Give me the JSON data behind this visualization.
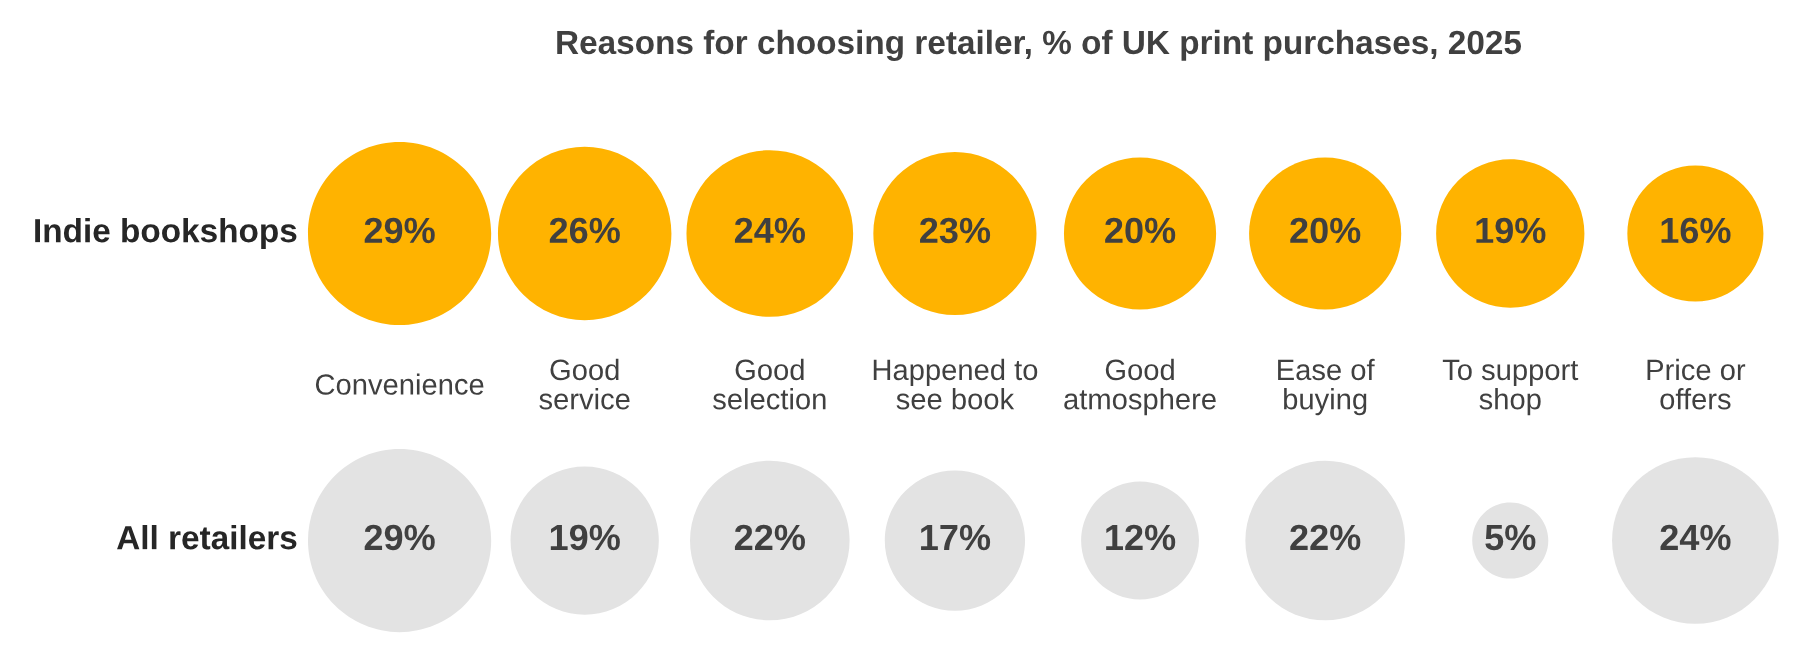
{
  "chart_data": {
    "type": "other",
    "title": "Reasons for choosing retailer, % of UK print purchases, 2025",
    "categories": [
      "Convenience",
      "Good\nservice",
      "Good\nselection",
      "Happened to\nsee book",
      "Good\natmosphere",
      "Ease of\nbuying",
      "To support\nshop",
      "Price or\noffers"
    ],
    "series": [
      {
        "name": "Indie bookshops",
        "color": "#ffb300",
        "values": [
          29,
          26,
          24,
          23,
          20,
          20,
          19,
          16
        ],
        "value_labels": [
          "29%",
          "26%",
          "24%",
          "23%",
          "20%",
          "20%",
          "19%",
          "16%"
        ]
      },
      {
        "name": "All retailers",
        "color": "#e3e3e3",
        "values": [
          29,
          19,
          22,
          17,
          12,
          22,
          5,
          24
        ],
        "value_labels": [
          "29%",
          "19%",
          "22%",
          "17%",
          "12%",
          "22%",
          "5%",
          "24%"
        ]
      }
    ]
  }
}
